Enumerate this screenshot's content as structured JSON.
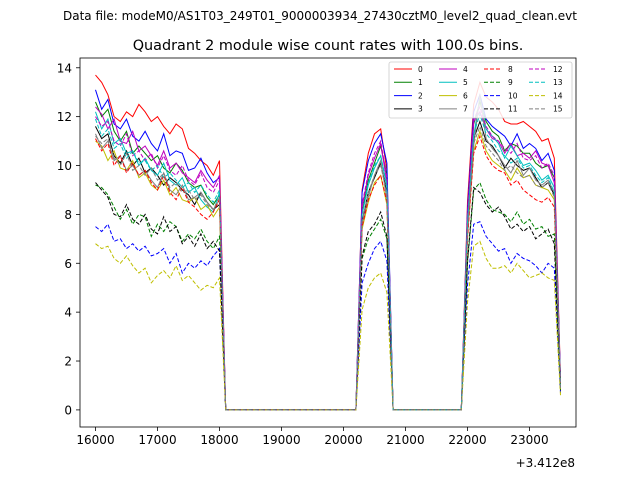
{
  "chart_data": {
    "type": "line",
    "suptitle": "Data file: modeM0/AS1T03_249T01_9000003934_27430cztM0_level2_quad_clean.evt",
    "title": "Quadrant 2 module wise count rates with 100.0s bins.",
    "xlabel": "",
    "ylabel": "",
    "offset_label": "+3.412e8",
    "xlim": [
      15750,
      23750
    ],
    "ylim": [
      -0.7,
      14.4
    ],
    "xticks": [
      16000,
      17000,
      18000,
      19000,
      20000,
      21000,
      22000,
      23000
    ],
    "yticks": [
      0,
      2,
      4,
      6,
      8,
      10,
      12,
      14
    ],
    "legend": {
      "placement": "top-right",
      "columns": 4
    },
    "x": [
      16000,
      16100,
      16200,
      16300,
      16400,
      16500,
      16600,
      16700,
      16800,
      16900,
      17000,
      17100,
      17200,
      17300,
      17400,
      17500,
      17600,
      17700,
      17800,
      17900,
      18000,
      18100,
      20200,
      20300,
      20400,
      20500,
      20600,
      20700,
      20800,
      21900,
      22000,
      22100,
      22200,
      22300,
      22400,
      22500,
      22600,
      22700,
      22800,
      22900,
      23000,
      23100,
      23200,
      23300,
      23400,
      23500
    ],
    "series": [
      {
        "name": "0",
        "color": "#ff0000",
        "dash": "solid",
        "values": [
          13.7,
          13.4,
          12.9,
          12.0,
          11.8,
          12.2,
          12.0,
          12.5,
          12.2,
          11.8,
          12.0,
          11.6,
          11.3,
          11.7,
          11.5,
          10.7,
          10.5,
          10.2,
          10.0,
          9.6,
          10.2,
          0,
          0,
          9.0,
          10.5,
          11.3,
          11.5,
          9.8,
          0,
          0,
          8.5,
          12.5,
          13.4,
          12.8,
          12.6,
          12.3,
          11.8,
          11.7,
          11.7,
          11.8,
          11.6,
          11.4,
          11.0,
          11.1,
          10.3,
          1.3
        ]
      },
      {
        "name": "1",
        "color": "#008000",
        "dash": "solid",
        "values": [
          12.6,
          12.0,
          12.3,
          11.4,
          11.0,
          11.4,
          10.5,
          10.8,
          10.5,
          10.2,
          10.4,
          9.9,
          9.7,
          10.1,
          9.8,
          9.3,
          9.1,
          9.2,
          8.7,
          8.4,
          8.8,
          0,
          0,
          8.1,
          9.4,
          10.1,
          10.8,
          9.6,
          0,
          0,
          7.8,
          11.7,
          12.6,
          11.8,
          11.4,
          11.2,
          10.6,
          10.9,
          10.8,
          10.5,
          10.5,
          10.1,
          9.9,
          10.0,
          9.5,
          1.1
        ]
      },
      {
        "name": "2",
        "color": "#0000ff",
        "dash": "solid",
        "values": [
          13.1,
          12.3,
          12.7,
          11.7,
          11.5,
          11.9,
          11.2,
          11.0,
          11.4,
          10.9,
          10.6,
          11.3,
          10.4,
          10.6,
          10.5,
          9.8,
          9.9,
          10.3,
          9.7,
          9.3,
          9.5,
          0,
          0,
          8.9,
          10.2,
          10.9,
          11.3,
          10.1,
          0,
          0,
          8.2,
          12.2,
          12.9,
          11.9,
          11.6,
          11.4,
          11.2,
          10.8,
          11.3,
          10.7,
          10.9,
          10.7,
          10.2,
          10.5,
          9.8,
          1.2
        ]
      },
      {
        "name": "3",
        "color": "#000000",
        "dash": "solid",
        "values": [
          11.6,
          11.1,
          11.3,
          10.4,
          10.1,
          10.6,
          10.0,
          10.3,
          9.7,
          9.9,
          9.6,
          9.2,
          9.5,
          9.3,
          9.0,
          8.8,
          8.4,
          8.9,
          8.5,
          8.2,
          8.4,
          0,
          0,
          7.7,
          8.9,
          9.5,
          10.1,
          8.9,
          0,
          0,
          7.4,
          11.1,
          11.8,
          11.0,
          10.8,
          10.4,
          9.9,
          10.3,
          10.0,
          9.8,
          9.9,
          9.5,
          9.1,
          9.3,
          8.8,
          1.0
        ]
      },
      {
        "name": "4",
        "color": "#bf00bf",
        "dash": "solid",
        "values": [
          12.4,
          12.1,
          11.5,
          11.9,
          11.0,
          10.9,
          11.4,
          10.6,
          10.8,
          10.4,
          10.0,
          10.6,
          9.9,
          10.1,
          9.7,
          9.5,
          9.3,
          9.8,
          9.4,
          9.1,
          9.6,
          0,
          0,
          8.3,
          9.6,
          10.3,
          10.9,
          9.3,
          0,
          0,
          7.9,
          11.8,
          12.2,
          11.5,
          11.1,
          11.0,
          10.5,
          10.9,
          10.4,
          10.5,
          10.3,
          10.6,
          10.1,
          10.0,
          9.3,
          1.1
        ]
      },
      {
        "name": "5",
        "color": "#00bfbf",
        "dash": "solid",
        "values": [
          12.2,
          11.5,
          11.9,
          10.9,
          11.1,
          10.5,
          10.6,
          10.0,
          10.3,
          9.8,
          9.6,
          10.1,
          9.4,
          9.2,
          9.5,
          8.9,
          9.1,
          8.6,
          8.3,
          8.1,
          8.9,
          0,
          0,
          8.0,
          9.2,
          9.9,
          10.4,
          9.1,
          0,
          0,
          7.6,
          11.2,
          12.8,
          11.5,
          11.2,
          10.9,
          10.3,
          10.8,
          10.4,
          10.0,
          10.1,
          9.8,
          9.4,
          9.6,
          9.1,
          1.0
        ]
      },
      {
        "name": "6",
        "color": "#bfbf00",
        "dash": "solid",
        "values": [
          11.0,
          10.8,
          10.2,
          10.6,
          9.9,
          9.8,
          10.2,
          9.5,
          9.7,
          9.2,
          9.0,
          9.4,
          8.8,
          9.1,
          8.6,
          8.5,
          8.7,
          8.2,
          8.4,
          7.9,
          8.3,
          0,
          0,
          7.4,
          8.5,
          9.3,
          9.6,
          8.4,
          0,
          0,
          7.1,
          10.6,
          11.4,
          10.6,
          10.2,
          10.0,
          9.8,
          9.4,
          9.9,
          9.5,
          9.6,
          9.2,
          9.1,
          9.0,
          8.6,
          0.9
        ]
      },
      {
        "name": "7",
        "color": "#808080",
        "dash": "solid",
        "values": [
          11.3,
          10.7,
          11.0,
          10.2,
          10.4,
          9.8,
          10.0,
          9.6,
          9.8,
          9.4,
          9.1,
          9.7,
          9.0,
          8.8,
          9.2,
          8.6,
          8.7,
          8.9,
          8.5,
          8.2,
          8.6,
          0,
          0,
          7.6,
          8.7,
          9.6,
          10.2,
          8.6,
          0,
          0,
          7.2,
          10.8,
          12.9,
          11.1,
          10.7,
          10.4,
          10.0,
          9.7,
          10.2,
          9.6,
          9.9,
          9.4,
          9.2,
          9.4,
          8.9,
          1.0
        ]
      },
      {
        "name": "8",
        "color": "#ff0000",
        "dash": "dashed",
        "values": [
          11.1,
          10.6,
          10.9,
          10.0,
          10.4,
          9.7,
          10.1,
          9.6,
          9.8,
          9.3,
          9.0,
          9.6,
          8.9,
          8.6,
          9.1,
          8.5,
          8.3,
          8.0,
          7.8,
          8.1,
          8.6,
          0,
          0,
          7.5,
          8.6,
          9.2,
          9.6,
          8.5,
          0,
          0,
          7.0,
          10.5,
          11.2,
          10.4,
          10.0,
          9.8,
          9.7,
          9.2,
          9.4,
          9.0,
          8.8,
          8.6,
          8.5,
          8.7,
          8.3,
          0.9
        ]
      },
      {
        "name": "9",
        "color": "#008000",
        "dash": "dashed",
        "values": [
          9.2,
          9.1,
          8.8,
          8.3,
          7.8,
          8.2,
          7.6,
          8.0,
          7.9,
          7.1,
          7.6,
          7.3,
          7.7,
          7.5,
          6.9,
          7.2,
          7.0,
          7.4,
          6.9,
          6.6,
          7.1,
          0,
          0,
          6.2,
          7.0,
          7.4,
          7.8,
          7.0,
          0,
          0,
          6.0,
          9.0,
          9.3,
          8.6,
          8.2,
          8.1,
          8.0,
          7.7,
          8.1,
          7.6,
          7.8,
          7.4,
          7.5,
          7.1,
          7.2,
          0.8
        ]
      },
      {
        "name": "10",
        "color": "#0000ff",
        "dash": "dashed",
        "values": [
          7.5,
          7.3,
          7.6,
          6.9,
          7.0,
          6.6,
          6.8,
          6.5,
          6.7,
          6.3,
          6.4,
          6.6,
          6.0,
          6.4,
          5.6,
          6.0,
          5.8,
          6.1,
          5.9,
          6.3,
          6.6,
          0,
          0,
          5.2,
          6.0,
          6.6,
          6.9,
          6.1,
          0,
          0,
          5.1,
          7.6,
          7.7,
          7.1,
          6.8,
          6.5,
          6.6,
          6.0,
          6.4,
          6.2,
          6.1,
          5.9,
          5.6,
          6.0,
          5.8,
          0.7
        ]
      },
      {
        "name": "11",
        "color": "#000000",
        "dash": "dashed",
        "values": [
          9.3,
          9.0,
          8.7,
          8.0,
          7.9,
          8.4,
          7.8,
          7.6,
          8.0,
          7.4,
          7.2,
          7.9,
          7.3,
          7.5,
          6.8,
          7.1,
          6.7,
          7.2,
          6.6,
          6.9,
          6.5,
          0,
          0,
          6.3,
          7.3,
          7.6,
          8.1,
          7.1,
          0,
          0,
          6.1,
          9.1,
          8.9,
          8.4,
          8.1,
          8.3,
          7.9,
          7.4,
          7.6,
          7.3,
          7.5,
          7.0,
          7.2,
          7.4,
          6.8,
          0.8
        ]
      },
      {
        "name": "12",
        "color": "#bf00bf",
        "dash": "dashed",
        "values": [
          12.0,
          11.6,
          11.8,
          11.0,
          10.8,
          11.3,
          10.4,
          10.6,
          10.2,
          10.5,
          9.9,
          10.4,
          9.8,
          9.6,
          10.0,
          9.4,
          9.2,
          9.7,
          9.1,
          8.9,
          9.4,
          0,
          0,
          8.4,
          9.7,
          10.5,
          11.0,
          9.5,
          0,
          0,
          8.0,
          11.9,
          12.4,
          11.6,
          11.2,
          11.0,
          10.7,
          10.5,
          10.9,
          10.3,
          10.2,
          10.4,
          9.9,
          10.1,
          9.6,
          1.1
        ]
      },
      {
        "name": "13",
        "color": "#00bfbf",
        "dash": "dashed",
        "values": [
          11.9,
          11.2,
          11.5,
          10.7,
          10.9,
          10.3,
          10.6,
          10.1,
          10.2,
          9.8,
          10.0,
          9.5,
          9.7,
          9.4,
          9.1,
          9.3,
          8.9,
          9.2,
          8.8,
          8.5,
          9.0,
          0,
          0,
          8.0,
          9.3,
          10.0,
          10.4,
          9.2,
          0,
          0,
          7.7,
          11.3,
          12.1,
          11.3,
          11.0,
          10.6,
          10.4,
          10.1,
          10.3,
          9.9,
          10.0,
          9.6,
          9.3,
          9.5,
          8.9,
          1.0
        ]
      },
      {
        "name": "14",
        "color": "#bfbf00",
        "dash": "dashed",
        "values": [
          6.8,
          6.6,
          6.7,
          6.2,
          6.0,
          6.3,
          5.9,
          5.6,
          5.8,
          5.2,
          5.5,
          5.7,
          5.4,
          5.9,
          5.3,
          5.5,
          5.2,
          4.9,
          5.1,
          5.0,
          5.4,
          0,
          0,
          4.1,
          5.0,
          5.4,
          5.6,
          4.8,
          0,
          0,
          4.4,
          6.7,
          6.9,
          6.2,
          5.8,
          5.8,
          5.9,
          5.6,
          6.0,
          5.7,
          5.4,
          5.5,
          5.6,
          5.4,
          5.3,
          0.6
        ]
      },
      {
        "name": "15",
        "color": "#808080",
        "dash": "dashed",
        "values": [
          11.2,
          10.9,
          11.1,
          10.3,
          10.0,
          10.5,
          9.8,
          10.0,
          9.6,
          9.9,
          9.4,
          9.7,
          9.1,
          9.3,
          8.9,
          9.0,
          8.6,
          8.8,
          8.4,
          8.2,
          8.7,
          0,
          0,
          7.7,
          8.9,
          9.6,
          10.0,
          8.8,
          0,
          0,
          7.3,
          10.9,
          11.6,
          10.8,
          10.5,
          10.2,
          9.8,
          10.0,
          9.7,
          9.5,
          9.6,
          9.2,
          9.1,
          9.3,
          8.7,
          0.9
        ]
      }
    ]
  }
}
